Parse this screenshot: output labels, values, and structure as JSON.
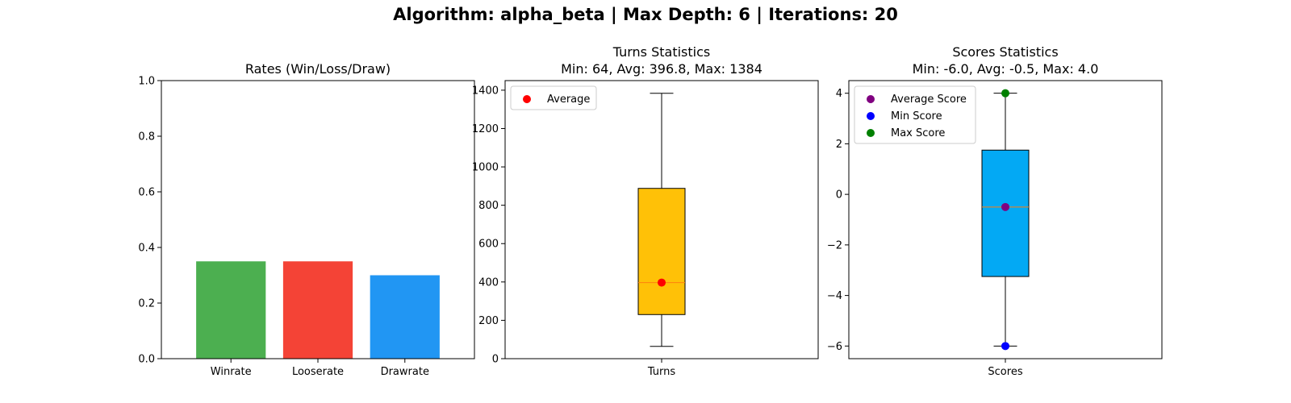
{
  "figure": {
    "suptitle": "Algorithm: alpha_beta | Max Depth: 6 | Iterations: 20"
  },
  "chart_data": [
    {
      "type": "bar",
      "title": "Rates (Win/Loss/Draw)",
      "categories": [
        "Winrate",
        "Looserate",
        "Drawrate"
      ],
      "values": [
        0.35,
        0.35,
        0.3
      ],
      "colors": [
        "#4caf50",
        "#f44336",
        "#2196f3"
      ],
      "ylim": [
        0,
        1.0
      ],
      "yticks": [
        0.0,
        0.2,
        0.4,
        0.6,
        0.8,
        1.0
      ],
      "ytick_labels": [
        "0.0",
        "0.2",
        "0.4",
        "0.6",
        "0.8",
        "1.0"
      ],
      "grid": false
    },
    {
      "type": "box",
      "title_line1": "Turns Statistics",
      "title_line2": "Min: 64, Avg: 396.8, Max: 1384",
      "category": "Turns",
      "box": {
        "whisker_low": 64,
        "q1": 230,
        "median": 396.8,
        "q3": 888,
        "whisker_high": 1384
      },
      "box_color": "#ffc107",
      "median_color": "#ff7f0e",
      "points": [
        {
          "name": "Average",
          "value": 396.8,
          "color": "#ff0000"
        }
      ],
      "ylim": [
        0,
        1450
      ],
      "yticks": [
        0,
        200,
        400,
        600,
        800,
        1000,
        1200,
        1400
      ],
      "ytick_labels": [
        "0",
        "200",
        "400",
        "600",
        "800",
        "1000",
        "1200",
        "1400"
      ],
      "legend": [
        "Average"
      ],
      "legend_placement": "upper-left",
      "grid": false
    },
    {
      "type": "box",
      "title_line1": "Scores Statistics",
      "title_line2": "Min: -6.0, Avg: -0.5, Max: 4.0",
      "category": "Scores",
      "box": {
        "whisker_low": -6.0,
        "q1": -3.25,
        "median": -0.5,
        "q3": 1.75,
        "whisker_high": 4.0
      },
      "box_color": "#03a9f4",
      "median_color": "#ff7f0e",
      "points": [
        {
          "name": "Average Score",
          "value": -0.5,
          "color": "#800080"
        },
        {
          "name": "Min Score",
          "value": -6.0,
          "color": "#0000ff"
        },
        {
          "name": "Max Score",
          "value": 4.0,
          "color": "#008000"
        }
      ],
      "ylim": [
        -6.5,
        4.5
      ],
      "yticks": [
        -6,
        -4,
        -2,
        0,
        2,
        4
      ],
      "ytick_labels": [
        "−6",
        "−4",
        "−2",
        "0",
        "2",
        "4"
      ],
      "legend": [
        "Average Score",
        "Min Score",
        "Max Score"
      ],
      "legend_placement": "upper-left",
      "grid": false
    }
  ]
}
